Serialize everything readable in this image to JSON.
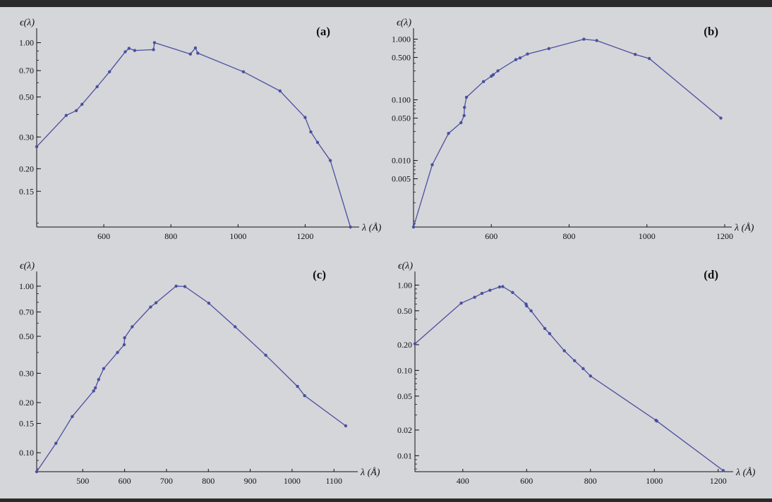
{
  "chart_data": [
    {
      "type": "line",
      "panel_label": "(a)",
      "ylabel": "ϵ(λ)",
      "xlabel": "λ (Å)",
      "yscale": "log",
      "xlim": [
        400,
        1340
      ],
      "ylim": [
        0.095,
        1.08
      ],
      "xticks": [
        600,
        800,
        1000,
        1200
      ],
      "yticks": [
        1.0,
        0.7,
        0.5,
        0.3,
        0.2,
        0.15
      ],
      "ytick_labels": [
        "1.00",
        "0.70",
        "0.50",
        "0.30",
        "0.20",
        "0.15"
      ],
      "series": [
        {
          "x": [
            400,
            488,
            518,
            535,
            580,
            617,
            664,
            675,
            692,
            748,
            751,
            858,
            873,
            880,
            1016,
            1125,
            1200,
            1217,
            1237,
            1275,
            1335
          ],
          "y": [
            0.265,
            0.395,
            0.42,
            0.455,
            0.57,
            0.69,
            0.89,
            0.93,
            0.905,
            0.915,
            1.0,
            0.865,
            0.935,
            0.875,
            0.69,
            0.54,
            0.385,
            0.32,
            0.28,
            0.222,
            0.095
          ]
        }
      ]
    },
    {
      "type": "line",
      "panel_label": "(b)",
      "ylabel": "ϵ(λ)",
      "xlabel": "λ (Å)",
      "yscale": "log",
      "xlim": [
        400,
        1200
      ],
      "ylim": [
        0.0008,
        1.1
      ],
      "xticks": [
        600,
        800,
        1000,
        1200
      ],
      "yticks": [
        1.0,
        0.5,
        0.1,
        0.05,
        0.01,
        0.005
      ],
      "ytick_labels": [
        "1.000",
        "0.500",
        "0.100",
        "0.050",
        "0.010",
        "0.005"
      ],
      "series": [
        {
          "x": [
            400,
            448,
            490,
            522,
            530,
            531,
            536,
            580,
            600,
            605,
            617,
            663,
            674,
            693,
            748,
            838,
            871,
            970,
            1006,
            1190
          ],
          "y": [
            0.0008,
            0.0085,
            0.028,
            0.042,
            0.055,
            0.075,
            0.11,
            0.2,
            0.245,
            0.26,
            0.3,
            0.46,
            0.49,
            0.57,
            0.7,
            1.0,
            0.95,
            0.56,
            0.48,
            0.05
          ]
        }
      ]
    },
    {
      "type": "line",
      "panel_label": "(c)",
      "ylabel": "ϵ(λ)",
      "xlabel": "λ (Å)",
      "yscale": "log",
      "xlim": [
        390,
        1140
      ],
      "ylim": [
        0.077,
        1.09
      ],
      "xticks": [
        500,
        600,
        700,
        800,
        900,
        1000,
        1100
      ],
      "yticks": [
        1.0,
        0.7,
        0.5,
        0.3,
        0.2,
        0.15,
        0.1
      ],
      "ytick_labels": [
        "1.00",
        "0.70",
        "0.50",
        "0.30",
        "0.20",
        "0.15",
        "0.10"
      ],
      "series": [
        {
          "x": [
            390,
            436,
            475,
            526,
            530,
            538,
            550,
            583,
            599,
            600,
            618,
            662,
            675,
            723,
            744,
            801,
            864,
            937,
            1013,
            1030,
            1128
          ],
          "y": [
            0.077,
            0.114,
            0.165,
            0.235,
            0.245,
            0.275,
            0.32,
            0.4,
            0.445,
            0.49,
            0.57,
            0.75,
            0.795,
            1.0,
            0.995,
            0.79,
            0.57,
            0.385,
            0.25,
            0.22,
            0.145
          ]
        }
      ]
    },
    {
      "type": "line",
      "panel_label": "(d)",
      "ylabel": "ϵ(λ)",
      "xlabel": "λ (Å)",
      "yscale": "log",
      "xlim": [
        250,
        1225
      ],
      "ylim": [
        0.0065,
        1.15
      ],
      "xticks": [
        400,
        600,
        800,
        1000,
        1200
      ],
      "yticks": [
        1.0,
        0.5,
        0.2,
        0.1,
        0.05,
        0.02,
        0.01
      ],
      "ytick_labels": [
        "1.00",
        "0.50",
        "0.20",
        "0.10",
        "0.05",
        "0.02",
        "0.01"
      ],
      "series": [
        {
          "x": [
            250,
            395,
            437,
            460,
            485,
            515,
            525,
            556,
            598,
            600,
            614,
            657,
            672,
            718,
            750,
            777,
            800,
            1005,
            1008,
            1216
          ],
          "y": [
            0.205,
            0.615,
            0.72,
            0.8,
            0.87,
            0.95,
            0.96,
            0.82,
            0.6,
            0.57,
            0.5,
            0.31,
            0.27,
            0.17,
            0.13,
            0.105,
            0.086,
            0.026,
            0.0255,
            0.0067
          ]
        }
      ]
    }
  ]
}
